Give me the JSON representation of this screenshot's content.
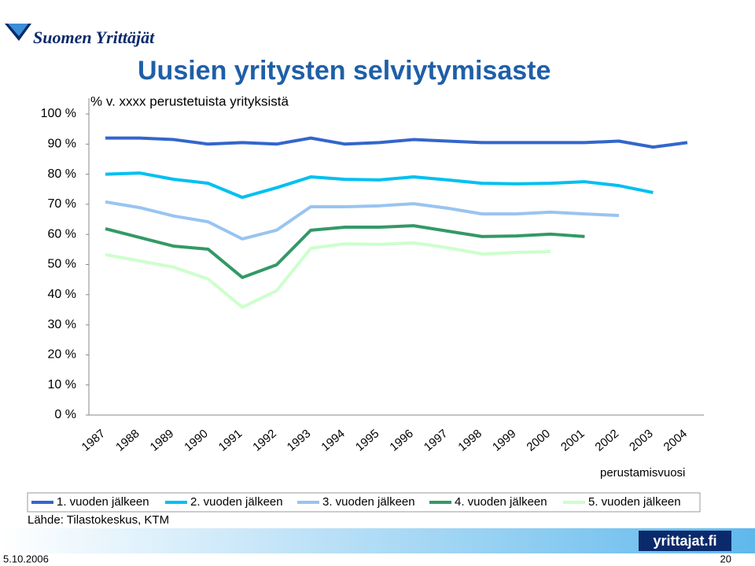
{
  "logo": "Suomen Yrittäjät",
  "chart_data": {
    "type": "line",
    "title": "Uusien yritysten selviytymisaste",
    "subtitle": "% v. xxxx perustetuista yrityksistä",
    "x_label": "perustamisvuosi",
    "categories": [
      "1987",
      "1988",
      "1989",
      "1990",
      "1991",
      "1992",
      "1993",
      "1994",
      "1995",
      "1996",
      "1997",
      "1998",
      "1999",
      "2000",
      "2001",
      "2002",
      "2003",
      "2004"
    ],
    "series": [
      {
        "name": "1. vuoden jälkeen",
        "color": "#3366cc",
        "values": [
          92,
          92,
          91.5,
          90,
          90.5,
          90,
          92,
          90,
          90.5,
          91.5,
          91,
          90.5,
          90.5,
          90.5,
          90.5,
          91,
          89,
          90.5
        ]
      },
      {
        "name": "2. vuoden jälkeen",
        "color": "#00c0f0",
        "values": [
          80,
          80.4,
          78.3,
          77,
          72.3,
          75.5,
          79.1,
          78.3,
          78.1,
          79.1,
          78.1,
          77,
          76.8,
          77,
          77.5,
          76.2,
          73.9,
          null
        ]
      },
      {
        "name": "3. vuoden jälkeen",
        "color": "#99c4f0",
        "values": [
          70.8,
          68.9,
          66.1,
          64.2,
          58.5,
          61.4,
          69.2,
          69.2,
          69.5,
          70.2,
          68.7,
          66.8,
          66.8,
          67.4,
          66.8,
          66.3,
          null,
          null
        ]
      },
      {
        "name": "4. vuoden jälkeen",
        "color": "#339966",
        "values": [
          61.9,
          59,
          56.1,
          55.1,
          45.7,
          49.9,
          61.4,
          62.4,
          62.4,
          62.9,
          61.1,
          59.3,
          59.5,
          60.1,
          59.3,
          null,
          null,
          null
        ]
      },
      {
        "name": "5. vuoden jälkeen",
        "color": "#ccffcc",
        "values": [
          53.3,
          51.2,
          49.1,
          45.2,
          35.8,
          41.3,
          55.4,
          56.9,
          56.7,
          57.2,
          55.6,
          53.5,
          54,
          54.3,
          null,
          null,
          null,
          null
        ]
      }
    ],
    "ylim": [
      0,
      100
    ],
    "yticks": [
      {
        "value": 0,
        "label": "0 %"
      },
      {
        "value": 10,
        "label": "10 %"
      },
      {
        "value": 20,
        "label": "20 %"
      },
      {
        "value": 30,
        "label": "30 %"
      },
      {
        "value": 40,
        "label": "40 %"
      },
      {
        "value": 50,
        "label": "50 %"
      },
      {
        "value": 60,
        "label": "60 %"
      },
      {
        "value": 70,
        "label": "70 %"
      },
      {
        "value": 80,
        "label": "80 %"
      },
      {
        "value": 90,
        "label": "90 %"
      },
      {
        "value": 100,
        "label": "100 %"
      }
    ],
    "legend": "bottom"
  },
  "source": "Lähde: Tilastokeskus, KTM",
  "footer": {
    "site": "yrittajat.fi",
    "date": "5.10.2006",
    "page": "20"
  }
}
